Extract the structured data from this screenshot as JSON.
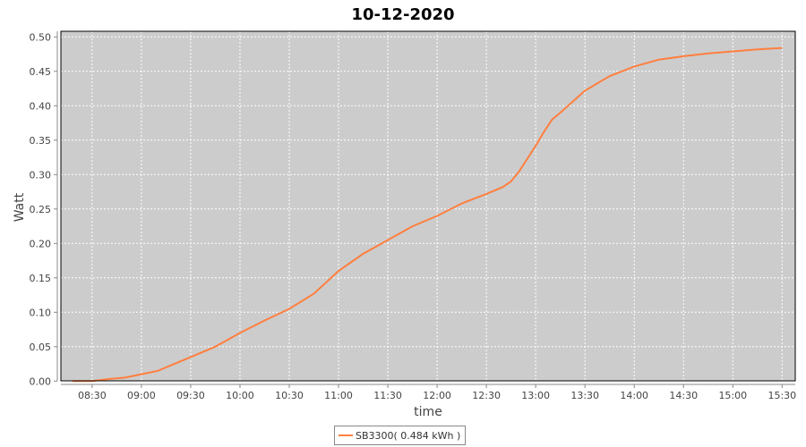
{
  "chart_data": {
    "type": "line",
    "title": "10-12-2020",
    "xlabel": "time",
    "ylabel": "Watt",
    "xlim": [
      "08:11",
      "15:38"
    ],
    "ylim": [
      0,
      0.5
    ],
    "x_ticks": [
      "08:30",
      "09:00",
      "09:30",
      "10:00",
      "10:30",
      "11:00",
      "11:30",
      "12:00",
      "12:30",
      "13:00",
      "13:30",
      "14:00",
      "14:30",
      "15:00",
      "15:30"
    ],
    "y_ticks": [
      "0.00",
      "0.05",
      "0.10",
      "0.15",
      "0.20",
      "0.25",
      "0.30",
      "0.35",
      "0.40",
      "0.45",
      "0.50"
    ],
    "grid": true,
    "legend_position": "bottom",
    "colors": {
      "plot_bg": "#cccccc",
      "series": "#ff7f3f",
      "grid": "#ffffff"
    },
    "series": [
      {
        "name": "SB3300( 0.484 kWh )",
        "x": [
          "08:18",
          "08:30",
          "08:40",
          "08:50",
          "09:00",
          "09:10",
          "09:20",
          "09:30",
          "09:45",
          "10:00",
          "10:15",
          "10:30",
          "10:45",
          "11:00",
          "11:15",
          "11:30",
          "11:45",
          "12:00",
          "12:15",
          "12:30",
          "12:40",
          "12:45",
          "12:50",
          "13:00",
          "13:05",
          "13:10",
          "13:15",
          "13:30",
          "13:45",
          "14:00",
          "14:15",
          "14:30",
          "14:45",
          "15:00",
          "15:15",
          "15:30"
        ],
        "values": [
          0,
          0,
          0.003,
          0.005,
          0.01,
          0.015,
          0.025,
          0.035,
          0.05,
          0.07,
          0.088,
          0.105,
          0.127,
          0.16,
          0.185,
          0.205,
          0.225,
          0.24,
          0.258,
          0.272,
          0.282,
          0.29,
          0.305,
          0.342,
          0.362,
          0.38,
          0.39,
          0.422,
          0.443,
          0.457,
          0.467,
          0.472,
          0.476,
          0.479,
          0.482,
          0.484
        ]
      }
    ]
  }
}
